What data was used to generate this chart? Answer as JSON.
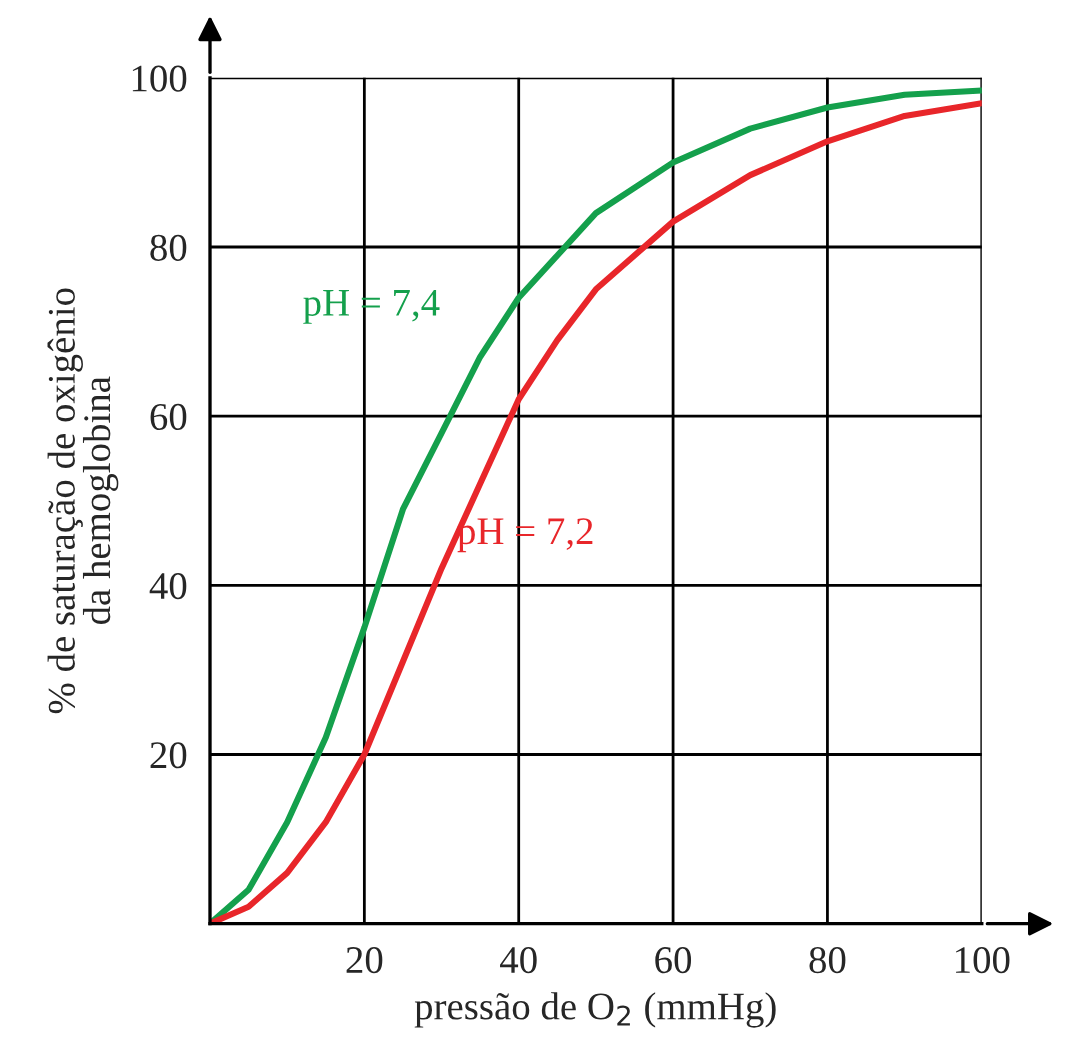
{
  "chart_data": {
    "type": "line",
    "xlabel": "pressão de O$_{2}$ (mmHg)",
    "ylabel": "% de saturação de oxigênio\nda hemoglobina",
    "x": [
      0,
      5,
      10,
      15,
      20,
      25,
      30,
      35,
      40,
      45,
      50,
      60,
      70,
      80,
      90,
      100
    ],
    "series": [
      {
        "name": "pH = 7,4",
        "color": "#14a04c",
        "values": [
          0,
          4,
          12,
          22,
          35,
          49,
          58,
          67,
          74,
          79,
          84,
          90,
          94,
          96.5,
          98,
          98.5
        ]
      },
      {
        "name": "pH = 7,2",
        "color": "#e8262a",
        "values": [
          0,
          2,
          6,
          12,
          20,
          31,
          42,
          52,
          62,
          69,
          75,
          83,
          88.5,
          92.5,
          95.5,
          97
        ]
      }
    ],
    "xlim": [
      0,
      100
    ],
    "ylim": [
      0,
      100
    ],
    "xticks": [
      20,
      40,
      60,
      80,
      100
    ],
    "yticks": [
      20,
      40,
      60,
      80,
      100
    ],
    "grid": true,
    "legend": false,
    "marker": "none",
    "line_style": "solid"
  }
}
